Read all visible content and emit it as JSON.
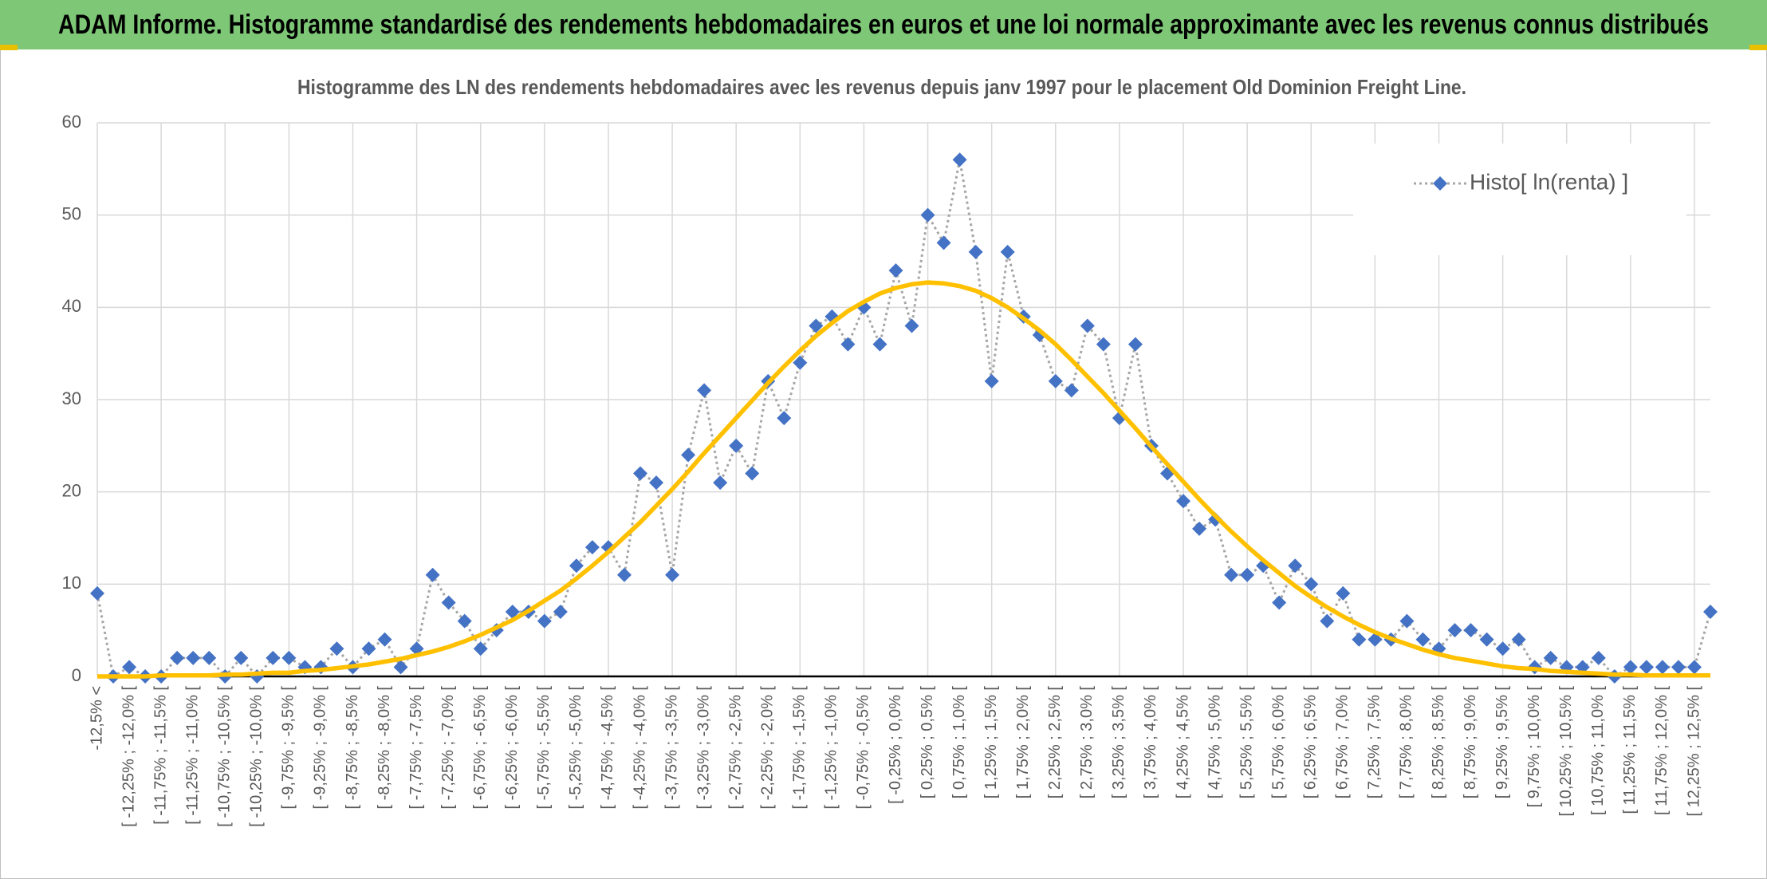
{
  "header": {
    "title": "ADAM Informe. Histogramme standardisé des rendements hebdomadaires en euros et une loi normale approximante avec les revenus connus distribués"
  },
  "chart_data": {
    "type": "line",
    "title": "Histogramme des LN des rendements hebdomadaires avec les revenus depuis janv 1997 pour le placement Old Dominion Freight Line.",
    "categories": [
      "-12,5% <",
      null,
      "[ -12,25% ; -12,0% [",
      null,
      "[ -11,75% ; -11,5% [",
      null,
      "[ -11,25% ; -11,0% [",
      null,
      "[ -10,75% ; -10,5% [",
      null,
      "[ -10,25% ; -10,0% [",
      null,
      "[ -9,75% ; -9,5% [",
      null,
      "[ -9,25% ; -9,0% [",
      null,
      "[ -8,75% ; -8,5% [",
      null,
      "[ -8,25% ; -8,0% [",
      null,
      "[ -7,75% ; -7,5% [",
      null,
      "[ -7,25% ; -7,0% [",
      null,
      "[ -6,75% ; -6,5% [",
      null,
      "[ -6,25% ; -6,0% [",
      null,
      "[ -5,75% ; -5,5% [",
      null,
      "[ -5,25% ; -5,0% [",
      null,
      "[ -4,75% ; -4,5% [",
      null,
      "[ -4,25% ; -4,0% [",
      null,
      "[ -3,75% ; -3,5% [",
      null,
      "[ -3,25% ; -3,0% [",
      null,
      "[ -2,75% ; -2,5% [",
      null,
      "[ -2,25% ; -2,0% [",
      null,
      "[ -1,75% ; -1,5% [",
      null,
      "[ -1,25% ; -1,0% [",
      null,
      "[ -0,75% ; -0,5% [",
      null,
      "[ -0,25% ; 0,0% [",
      null,
      "[ 0,25% ; 0,5% [",
      null,
      "[ 0,75% ; 1,0% [",
      null,
      "[ 1,25% ; 1,5% [",
      null,
      "[ 1,75% ; 2,0% [",
      null,
      "[ 2,25% ; 2,5% [",
      null,
      "[ 2,75% ; 3,0% [",
      null,
      "[ 3,25% ; 3,5% [",
      null,
      "[ 3,75% ; 4,0% [",
      null,
      "[ 4,25% ; 4,5% [",
      null,
      "[ 4,75% ; 5,0% [",
      null,
      "[ 5,25% ; 5,5% [",
      null,
      "[ 5,75% ; 6,0% [",
      null,
      "[ 6,25% ; 6,5% [",
      null,
      "[ 6,75% ; 7,0% [",
      null,
      "[ 7,25% ; 7,5% [",
      null,
      "[ 7,75% ; 8,0% [",
      null,
      "[ 8,25% ; 8,5% [",
      null,
      "[ 8,75% ; 9,0% [",
      null,
      "[ 9,25% ; 9,5% [",
      null,
      "[ 9,75% ; 10,0% [",
      null,
      "[ 10,25% ; 10,5% [",
      null,
      "[ 10,75% ; 11,0% [",
      null,
      "[ 11,25% ; 11,5% [",
      null,
      "[ 11,75% ; 12,0% [",
      null,
      "[ 12,25% ; 12,5% [",
      null
    ],
    "series": [
      {
        "name": "Histo[ ln(renta) ]",
        "color": "#4472c4",
        "line_color": "#a6a6a6",
        "values": [
          9,
          0,
          1,
          0,
          0,
          2,
          2,
          2,
          0,
          2,
          0,
          2,
          2,
          1,
          1,
          3,
          1,
          3,
          4,
          1,
          3,
          11,
          8,
          6,
          3,
          5,
          7,
          7,
          6,
          7,
          12,
          14,
          14,
          11,
          22,
          21,
          11,
          24,
          31,
          21,
          25,
          22,
          32,
          28,
          34,
          38,
          39,
          36,
          40,
          36,
          44,
          38,
          50,
          47,
          56,
          46,
          32,
          46,
          39,
          37,
          32,
          31,
          38,
          36,
          28,
          36,
          25,
          22,
          19,
          16,
          17,
          11,
          11,
          12,
          8,
          12,
          10,
          6,
          9,
          4,
          4,
          4,
          6,
          4,
          3,
          5,
          5,
          4,
          3,
          4,
          1,
          2,
          1,
          1,
          2,
          0,
          1,
          1,
          1,
          1,
          1,
          7
        ]
      },
      {
        "color": "#ffc000",
        "values": [
          0.0,
          0.0,
          0.0,
          0.0,
          0.1,
          0.1,
          0.1,
          0.1,
          0.2,
          0.2,
          0.3,
          0.4,
          0.4,
          0.6,
          0.7,
          0.9,
          1.1,
          1.3,
          1.6,
          1.9,
          2.3,
          2.7,
          3.2,
          3.8,
          4.5,
          5.3,
          6.1,
          7.1,
          8.2,
          9.3,
          10.6,
          12.0,
          13.5,
          15.1,
          16.7,
          18.5,
          20.3,
          22.2,
          24.2,
          26.1,
          28.0,
          29.9,
          31.8,
          33.6,
          35.3,
          36.9,
          38.3,
          39.6,
          40.6,
          41.5,
          42.1,
          42.5,
          42.7,
          42.6,
          42.3,
          41.8,
          41.0,
          40.0,
          38.8,
          37.5,
          36.0,
          34.3,
          32.5,
          30.7,
          28.8,
          26.9,
          24.9,
          23.0,
          21.1,
          19.2,
          17.4,
          15.7,
          14.1,
          12.6,
          11.2,
          9.8,
          8.6,
          7.5,
          6.5,
          5.6,
          4.8,
          4.1,
          3.5,
          2.9,
          2.4,
          2.0,
          1.7,
          1.4,
          1.1,
          0.9,
          0.8,
          0.6,
          0.5,
          0.4,
          0.3,
          0.2,
          0.2,
          0.1,
          0.1,
          0.1,
          0.1,
          0.1
        ]
      }
    ],
    "ylim": [
      0,
      60
    ],
    "yticks": [
      0,
      10,
      20,
      30,
      40,
      50,
      60
    ],
    "grid": true,
    "legend": "upper right"
  }
}
